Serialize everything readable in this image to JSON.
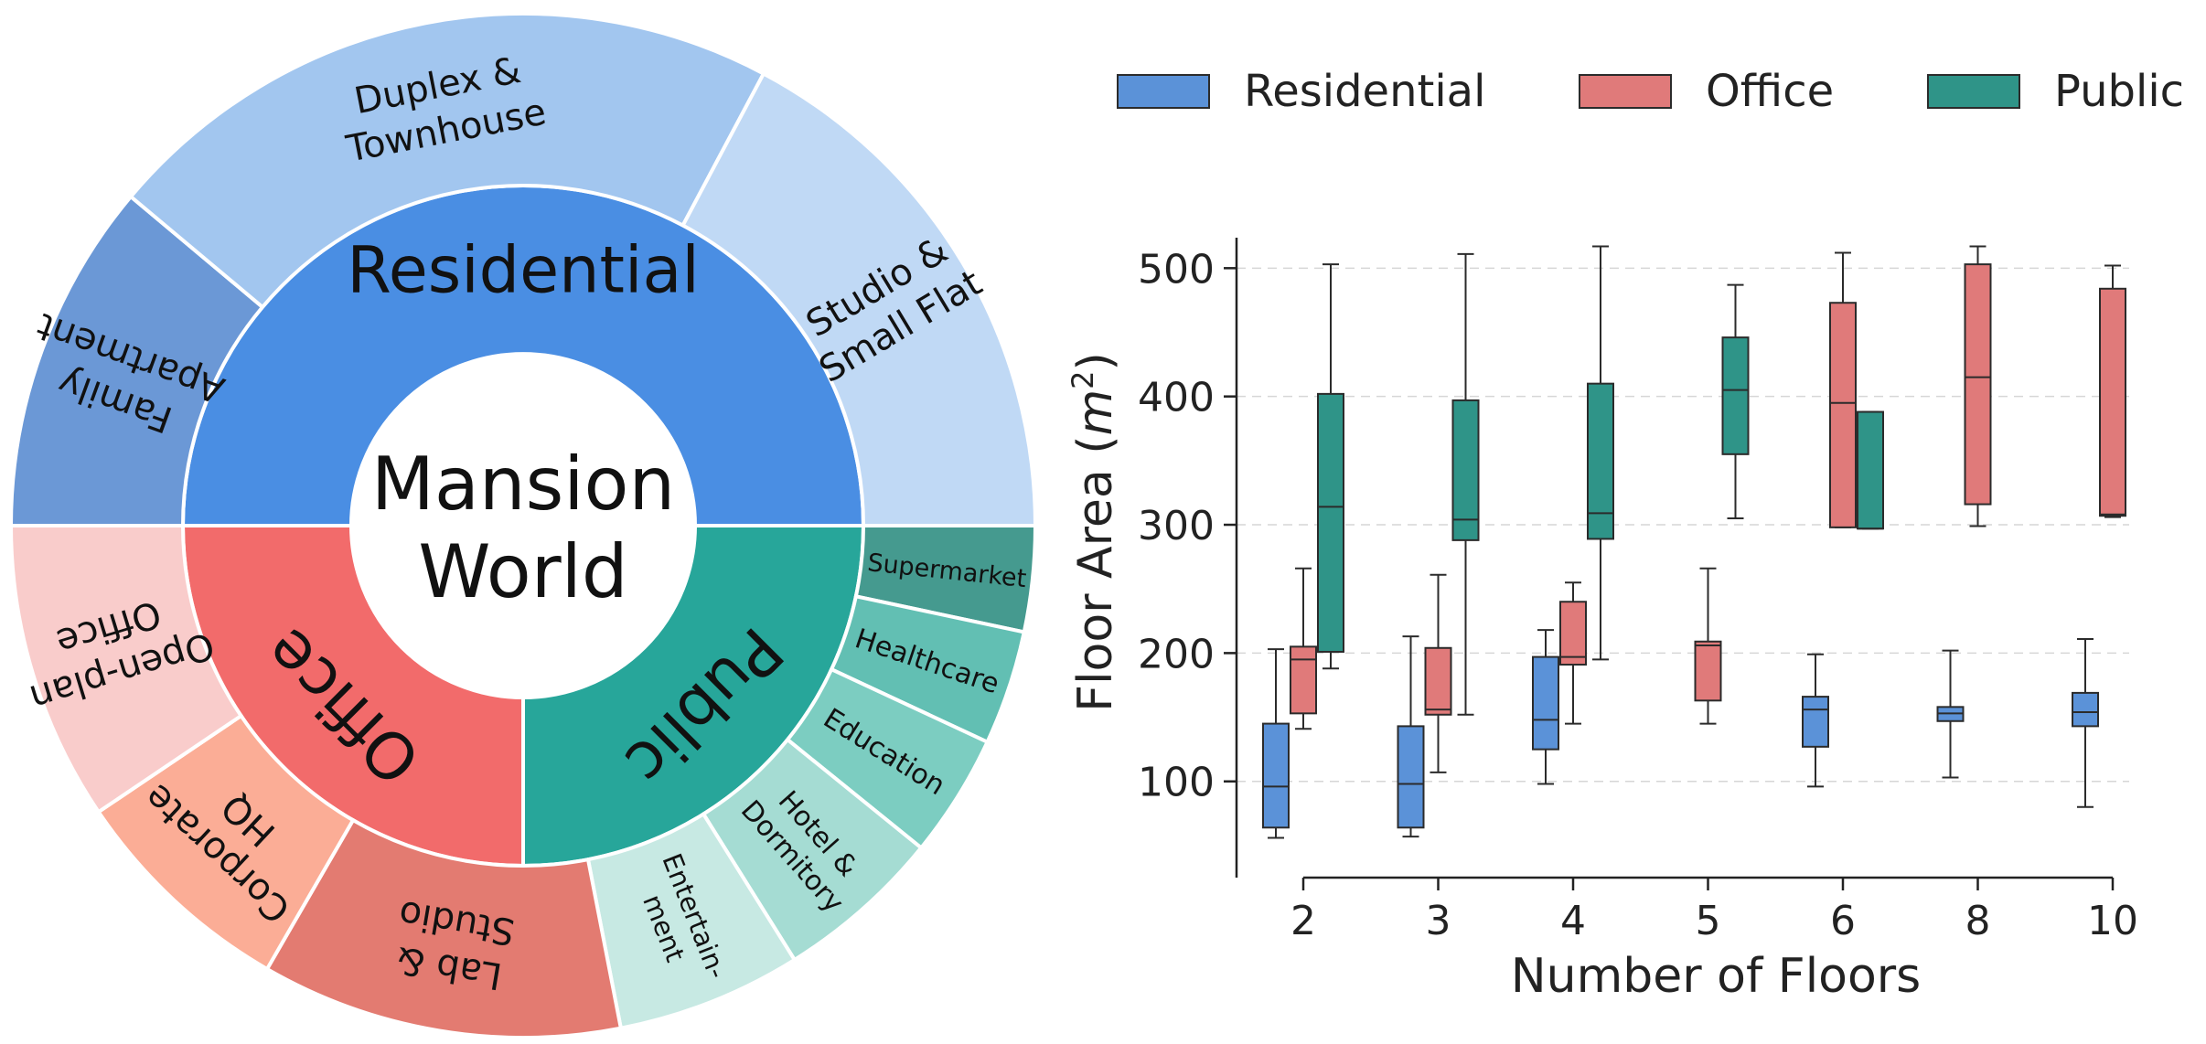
{
  "colors": {
    "residential": "#4a8ee3",
    "office": "#f26b6b",
    "public": "#27a69a",
    "residential_box": "#5b92d8",
    "office_box": "#e07a7a",
    "public_box": "#2f9488",
    "edge": "#2b2b2b",
    "grid": "#d6d6d6"
  },
  "chart_data": [
    {
      "type": "sunburst",
      "center_label": [
        "Mansion",
        "World"
      ],
      "categories": [
        {
          "name": "Residential",
          "color": "#4a8ee3",
          "children": [
            {
              "name": "Family Apartment",
              "lines": [
                "Family",
                "Apartment"
              ],
              "color": "#6b98d6"
            },
            {
              "name": "Duplex & Townhouse",
              "lines": [
                "Duplex &",
                "Townhouse"
              ],
              "color": "#a2c6ef"
            },
            {
              "name": "Studio & Small Flat",
              "lines": [
                "Studio &",
                "Small Flat"
              ],
              "color": "#c0d9f5"
            }
          ]
        },
        {
          "name": "Public",
          "color": "#27a69a",
          "children": [
            {
              "name": "Supermarket",
              "lines": [
                "Supermarket"
              ],
              "color": "#459a8f"
            },
            {
              "name": "Healthcare",
              "lines": [
                "Healthcare"
              ],
              "color": "#62bfb3"
            },
            {
              "name": "Education",
              "lines": [
                "Education"
              ],
              "color": "#7ccdc1"
            },
            {
              "name": "Hotel & Dormitory",
              "lines": [
                "Hotel &",
                "Dormitory"
              ],
              "color": "#a5dcd3"
            },
            {
              "name": "Entertainment",
              "lines": [
                "Entertain-",
                "ment"
              ],
              "color": "#c7e9e3"
            }
          ]
        },
        {
          "name": "Office",
          "color": "#f26b6b",
          "children": [
            {
              "name": "Lab & Studio",
              "lines": [
                "Lab &",
                "Studio"
              ],
              "color": "#e37b71"
            },
            {
              "name": "Corporate HQ",
              "lines": [
                "Corporate",
                "HQ"
              ],
              "color": "#fbad96"
            },
            {
              "name": "Open-plan Office",
              "lines": [
                "Open-plan",
                "Office"
              ],
              "color": "#f9cccb"
            }
          ]
        }
      ]
    },
    {
      "type": "box",
      "xlabel": "Number of Floors",
      "ylabel": "Floor Area (m²)",
      "ylabel_parts": {
        "main": "Floor Area (",
        "var": "m",
        "sup": "2",
        "close": ")"
      },
      "categories": [
        "2",
        "3",
        "4",
        "5",
        "6",
        "8",
        "10"
      ],
      "yticks": [
        100,
        200,
        300,
        400,
        500
      ],
      "ylim": [
        25,
        538
      ],
      "grid": true,
      "legend": {
        "placement": "top",
        "entries": [
          "Residential",
          "Office",
          "Public"
        ]
      },
      "series": [
        {
          "name": "Residential",
          "color": "#5b92d8",
          "boxes": [
            {
              "x": "2",
              "min": 56,
              "q1": 64,
              "median": 96,
              "q3": 145,
              "max": 203
            },
            {
              "x": "3",
              "min": 57,
              "q1": 64,
              "median": 98,
              "q3": 143,
              "max": 213
            },
            {
              "x": "4",
              "min": 98,
              "q1": 125,
              "median": 148,
              "q3": 197,
              "max": 218
            },
            {
              "x": "6",
              "min": 96,
              "q1": 127,
              "median": 156,
              "q3": 166,
              "max": 199
            },
            {
              "x": "8",
              "min": 103,
              "q1": 147,
              "median": 153,
              "q3": 158,
              "max": 202
            },
            {
              "x": "10",
              "min": 80,
              "q1": 143,
              "median": 154,
              "q3": 169,
              "max": 211
            }
          ]
        },
        {
          "name": "Office",
          "color": "#e07a7a",
          "boxes": [
            {
              "x": "2",
              "min": 141,
              "q1": 153,
              "median": 195,
              "q3": 205,
              "max": 266
            },
            {
              "x": "3",
              "min": 107,
              "q1": 152,
              "median": 156,
              "q3": 204,
              "max": 261
            },
            {
              "x": "4",
              "min": 145,
              "q1": 191,
              "median": 197,
              "q3": 240,
              "max": 255
            },
            {
              "x": "5",
              "min": 145,
              "q1": 163,
              "median": 206,
              "q3": 209,
              "max": 266
            },
            {
              "x": "6",
              "min": 298,
              "q1": 298,
              "median": 395,
              "q3": 473,
              "max": 512
            },
            {
              "x": "8",
              "min": 299,
              "q1": 316,
              "median": 415,
              "q3": 503,
              "max": 517
            },
            {
              "x": "10",
              "min": 306,
              "q1": 307,
              "median": 308,
              "q3": 484,
              "max": 502
            }
          ]
        },
        {
          "name": "Public",
          "color": "#2f9488",
          "boxes": [
            {
              "x": "2",
              "min": 188,
              "q1": 201,
              "median": 314,
              "q3": 402,
              "max": 503
            },
            {
              "x": "3",
              "min": 152,
              "q1": 288,
              "median": 304,
              "q3": 397,
              "max": 511
            },
            {
              "x": "4",
              "min": 195,
              "q1": 289,
              "median": 309,
              "q3": 410,
              "max": 517
            },
            {
              "x": "5",
              "min": 305,
              "q1": 355,
              "median": 405,
              "q3": 446,
              "max": 487
            },
            {
              "x": "6",
              "min": 297,
              "q1": 297,
              "median": 297,
              "q3": 388,
              "max": 388
            }
          ]
        }
      ]
    }
  ]
}
